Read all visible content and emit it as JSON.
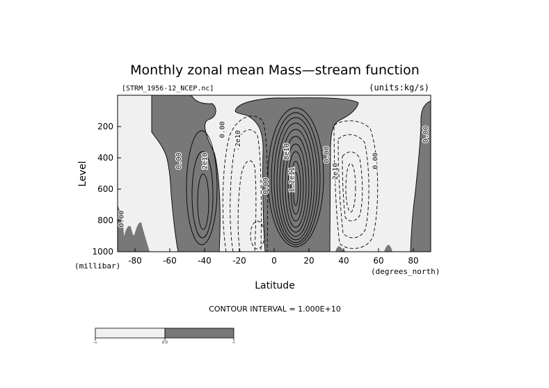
{
  "chart_data": {
    "type": "contour",
    "title": "Monthly zonal mean Mass—stream function",
    "subtitle_left": "[STRM_1956-12_NCEP.nc]",
    "subtitle_right": "(units:kg/s)",
    "xlabel": "Latitude",
    "ylabel": "Level",
    "x_unit_label": "(degrees_north)",
    "y_unit_label": "(millibar)",
    "xlim": [
      -90,
      90
    ],
    "ylim": [
      1000,
      0
    ],
    "x_ticks": [
      -80,
      -60,
      -40,
      -20,
      0,
      20,
      40,
      60,
      80
    ],
    "y_ticks": [
      200,
      400,
      600,
      800,
      1000
    ],
    "contour_interval_text": "CONTOUR INTERVAL = 1.000E+10",
    "shading": {
      "negative_color": "#f0f0f0",
      "positive_color": "#787878",
      "threshold": 0.0
    },
    "colorbar": {
      "labels": [
        "-∞",
        "0.0",
        "∞"
      ],
      "colors": [
        "#f0f0f0",
        "#787878"
      ]
    },
    "cells": [
      {
        "name": "hadley-nh-positive",
        "center_lat": 12,
        "center_level": 520,
        "peak": 120000000000.0,
        "sign": "positive"
      },
      {
        "name": "ferrel-sh-negative",
        "center_lat": -15,
        "center_level": 650,
        "peak": -40000000000.0,
        "sign": "negative"
      },
      {
        "name": "ferrel-nh-negative",
        "center_lat": 45,
        "center_level": 600,
        "peak": -40000000000.0,
        "sign": "negative"
      },
      {
        "name": "polar-sh-positive",
        "center_lat": -40,
        "center_level": 700,
        "peak": 40000000000.0,
        "sign": "positive"
      }
    ],
    "contour_labels": [
      {
        "text": "2e10",
        "lat": -40,
        "level": 420
      },
      {
        "text": "0.00",
        "lat": -55,
        "level": 420
      },
      {
        "text": "0.00",
        "lat": -30,
        "level": 220
      },
      {
        "text": "-2e10",
        "lat": -21,
        "level": 290
      },
      {
        "text": "0.00",
        "lat": -5,
        "level": 580
      },
      {
        "text": "8e10",
        "lat": 7,
        "level": 360
      },
      {
        "text": "1.2e11",
        "lat": 10,
        "level": 540
      },
      {
        "text": "0.00",
        "lat": 30,
        "level": 380
      },
      {
        "text": "-2e10",
        "lat": 35,
        "level": 500
      },
      {
        "text": "0.00",
        "lat": 58,
        "level": 420
      },
      {
        "text": "0.00",
        "lat": 87,
        "level": 250
      },
      {
        "text": "0.00",
        "lat": -88,
        "level": 790
      }
    ]
  }
}
